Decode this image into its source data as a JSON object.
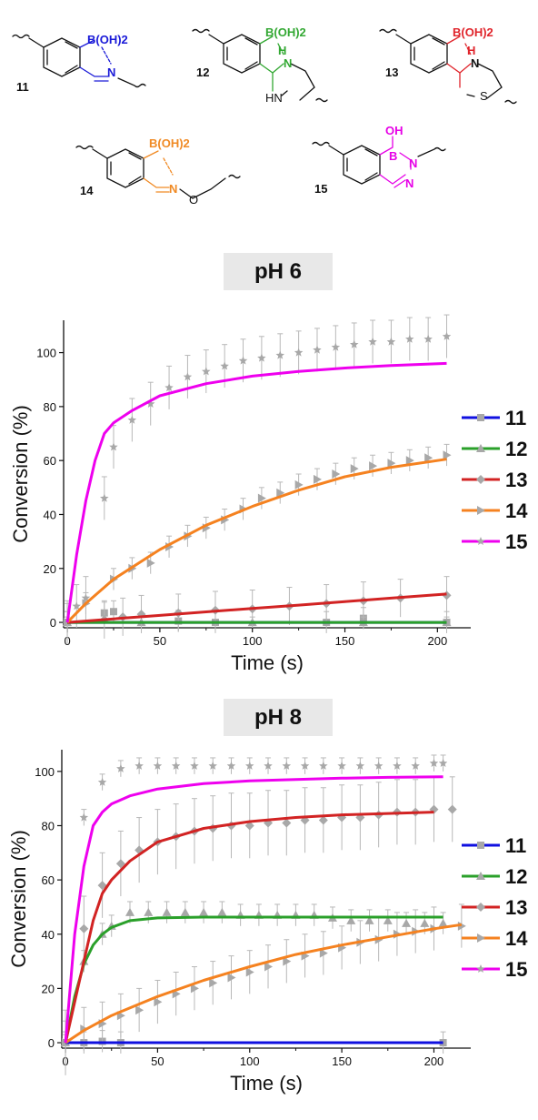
{
  "structures": {
    "compounds": [
      {
        "id": "11",
        "group": "B(OH)2",
        "color": "#1a1ad8",
        "heteroatom": "N"
      },
      {
        "id": "12",
        "group": "B(OH)2",
        "color": "#33a833",
        "heteroatom": "N",
        "extra": [
          "H",
          "N",
          "HN"
        ]
      },
      {
        "id": "13",
        "group": "B(OH)2",
        "color": "#e0242b",
        "heteroatom": "N",
        "extra": [
          "H",
          "N",
          "S"
        ]
      },
      {
        "id": "14",
        "group": "B(OH)2",
        "color": "#f08a24",
        "heteroatom": "N",
        "extra": [
          "O"
        ]
      },
      {
        "id": "15",
        "group": "OH",
        "color": "#e600e6",
        "heteroatom": "B",
        "extra": [
          "N",
          "N"
        ]
      }
    ]
  },
  "chart_data": [
    {
      "type": "line",
      "title": "pH 6",
      "xlabel": "Time (s)",
      "ylabel": "Conversion (%)",
      "xlim": [
        -2,
        218
      ],
      "ylim": [
        -2,
        112
      ],
      "x_ticks": [
        "0",
        "50",
        "100",
        "150",
        "200"
      ],
      "y_ticks": [
        "0",
        "20",
        "40",
        "60",
        "80",
        "100"
      ],
      "legend_position": "right",
      "series": [
        {
          "name": "11",
          "color": "#1010e0",
          "marker": "square",
          "x": [
            0,
            205
          ],
          "y": [
            0,
            0
          ],
          "scatter": [
            [
              0,
              0
            ],
            [
              20,
              3.5
            ],
            [
              25,
              4
            ],
            [
              60,
              0.5
            ],
            [
              80,
              0
            ],
            [
              140,
              0
            ],
            [
              160,
              1.5
            ],
            [
              205,
              0
            ]
          ],
          "err": 4
        },
        {
          "name": "12",
          "color": "#2aa02a",
          "marker": "triangle",
          "x": [
            0,
            205
          ],
          "y": [
            0,
            0
          ],
          "scatter": [
            [
              0,
              0
            ],
            [
              40,
              0
            ],
            [
              100,
              0
            ],
            [
              160,
              0
            ],
            [
              205,
              0
            ]
          ],
          "err": 2
        },
        {
          "name": "13",
          "color": "#d22323",
          "marker": "diamond",
          "x": [
            0,
            25,
            50,
            75,
            100,
            125,
            150,
            175,
            205
          ],
          "y": [
            0,
            1.3,
            2.6,
            3.9,
            5.2,
            6.4,
            7.7,
            9,
            10.5
          ],
          "scatter": [
            [
              0,
              0
            ],
            [
              20,
              1
            ],
            [
              30,
              2
            ],
            [
              40,
              3
            ],
            [
              60,
              3.5
            ],
            [
              80,
              4.5
            ],
            [
              100,
              5
            ],
            [
              120,
              6
            ],
            [
              140,
              7
            ],
            [
              160,
              8
            ],
            [
              180,
              9
            ],
            [
              205,
              10
            ]
          ],
          "err": 7
        },
        {
          "name": "14",
          "color": "#f58220",
          "marker": "triangle-right",
          "x": [
            0,
            10,
            25,
            50,
            75,
            100,
            125,
            150,
            175,
            205
          ],
          "y": [
            0,
            7,
            16,
            27,
            36,
            43,
            49,
            54,
            57.5,
            60.5
          ],
          "scatter": [
            [
              0,
              0
            ],
            [
              10,
              7
            ],
            [
              25,
              16
            ],
            [
              35,
              20
            ],
            [
              45,
              22
            ],
            [
              55,
              28
            ],
            [
              65,
              32
            ],
            [
              75,
              35
            ],
            [
              85,
              38
            ],
            [
              95,
              42
            ],
            [
              105,
              46
            ],
            [
              115,
              48
            ],
            [
              125,
              51
            ],
            [
              135,
              53
            ],
            [
              145,
              55
            ],
            [
              155,
              57
            ],
            [
              165,
              58
            ],
            [
              175,
              59
            ],
            [
              185,
              60
            ],
            [
              195,
              61
            ],
            [
              205,
              62
            ]
          ],
          "err": 4
        },
        {
          "name": "15",
          "color": "#ee00ee",
          "marker": "star",
          "x": [
            0,
            5,
            10,
            15,
            20,
            25,
            35,
            50,
            75,
            100,
            125,
            150,
            175,
            205
          ],
          "y": [
            0,
            25,
            45,
            60,
            70,
            74,
            78.5,
            84,
            88.5,
            91.3,
            93,
            94.3,
            95.2,
            96
          ],
          "scatter": [
            [
              0,
              0
            ],
            [
              5,
              6
            ],
            [
              10,
              9
            ],
            [
              20,
              46
            ],
            [
              25,
              65
            ],
            [
              35,
              75
            ],
            [
              45,
              81
            ],
            [
              55,
              87
            ],
            [
              65,
              91
            ],
            [
              75,
              93
            ],
            [
              85,
              95
            ],
            [
              95,
              97
            ],
            [
              105,
              98
            ],
            [
              115,
              99
            ],
            [
              125,
              100
            ],
            [
              135,
              101
            ],
            [
              145,
              102
            ],
            [
              155,
              103
            ],
            [
              165,
              104
            ],
            [
              175,
              104
            ],
            [
              185,
              105
            ],
            [
              195,
              105
            ],
            [
              205,
              106
            ]
          ],
          "err": 8
        }
      ]
    },
    {
      "type": "line",
      "title": "pH 8",
      "xlabel": "Time (s)",
      "ylabel": "Conversion (%)",
      "xlim": [
        -2,
        220
      ],
      "ylim": [
        -2,
        108
      ],
      "x_ticks": [
        "0",
        "50",
        "100",
        "150",
        "200"
      ],
      "y_ticks": [
        "0",
        "20",
        "40",
        "60",
        "80",
        "100"
      ],
      "legend_position": "right",
      "series": [
        {
          "name": "11",
          "color": "#1010e0",
          "marker": "square",
          "x": [
            0,
            205
          ],
          "y": [
            0,
            0
          ],
          "scatter": [
            [
              0,
              0
            ],
            [
              10,
              0
            ],
            [
              20,
              0.5
            ],
            [
              30,
              0
            ],
            [
              205,
              0
            ]
          ],
          "err": 4
        },
        {
          "name": "12",
          "color": "#2aa02a",
          "marker": "triangle",
          "x": [
            0,
            5,
            10,
            15,
            20,
            25,
            35,
            50,
            75,
            100,
            150,
            205
          ],
          "y": [
            0,
            17,
            29,
            36,
            40,
            42.5,
            45,
            46,
            46.3,
            46.3,
            46.3,
            46.3
          ],
          "scatter": [
            [
              0,
              0
            ],
            [
              10,
              30
            ],
            [
              20,
              40
            ],
            [
              25,
              43
            ],
            [
              35,
              48
            ],
            [
              45,
              48
            ],
            [
              55,
              48
            ],
            [
              65,
              48
            ],
            [
              75,
              48
            ],
            [
              85,
              48
            ],
            [
              95,
              47
            ],
            [
              105,
              47
            ],
            [
              115,
              47
            ],
            [
              125,
              47
            ],
            [
              135,
              47
            ],
            [
              145,
              46
            ],
            [
              155,
              45
            ],
            [
              165,
              45
            ],
            [
              175,
              45
            ],
            [
              185,
              44
            ],
            [
              195,
              44
            ],
            [
              205,
              44
            ]
          ],
          "err": 4
        },
        {
          "name": "13",
          "color": "#d22323",
          "marker": "diamond",
          "x": [
            0,
            5,
            10,
            15,
            20,
            25,
            35,
            50,
            75,
            100,
            125,
            150,
            175,
            200
          ],
          "y": [
            0,
            15,
            30,
            45,
            55,
            60,
            67,
            74,
            79,
            81.5,
            83,
            84,
            84.5,
            85
          ],
          "scatter": [
            [
              0,
              0
            ],
            [
              10,
              42
            ],
            [
              20,
              58
            ],
            [
              30,
              66
            ],
            [
              40,
              71
            ],
            [
              50,
              74
            ],
            [
              60,
              76
            ],
            [
              70,
              78
            ],
            [
              80,
              79
            ],
            [
              90,
              80
            ],
            [
              100,
              80
            ],
            [
              110,
              81
            ],
            [
              120,
              81
            ],
            [
              130,
              82
            ],
            [
              140,
              82
            ],
            [
              150,
              83
            ],
            [
              160,
              83
            ],
            [
              170,
              84
            ],
            [
              180,
              85
            ],
            [
              190,
              85
            ],
            [
              200,
              86
            ],
            [
              210,
              86
            ]
          ],
          "err": 12
        },
        {
          "name": "14",
          "color": "#f58220",
          "marker": "triangle-right",
          "x": [
            0,
            10,
            25,
            50,
            75,
            100,
            125,
            150,
            175,
            200,
            215
          ],
          "y": [
            0,
            4.5,
            10,
            17,
            23,
            28,
            32.5,
            36,
            39,
            42,
            43.5
          ],
          "scatter": [
            [
              0,
              0
            ],
            [
              10,
              5
            ],
            [
              20,
              7
            ],
            [
              30,
              10
            ],
            [
              40,
              12
            ],
            [
              50,
              15
            ],
            [
              60,
              18
            ],
            [
              70,
              20
            ],
            [
              80,
              22
            ],
            [
              90,
              24
            ],
            [
              100,
              26
            ],
            [
              110,
              28
            ],
            [
              120,
              30
            ],
            [
              130,
              32
            ],
            [
              140,
              33
            ],
            [
              150,
              35
            ],
            [
              160,
              37
            ],
            [
              170,
              38
            ],
            [
              180,
              40
            ],
            [
              190,
              41
            ],
            [
              200,
              42
            ],
            [
              215,
              43
            ]
          ],
          "err": 8
        },
        {
          "name": "15",
          "color": "#ee00ee",
          "marker": "star",
          "x": [
            0,
            5,
            10,
            15,
            20,
            25,
            35,
            50,
            75,
            100,
            125,
            150,
            175,
            205
          ],
          "y": [
            0,
            40,
            65,
            80,
            85,
            88,
            91,
            93.5,
            95.5,
            96.5,
            97,
            97.5,
            97.8,
            98
          ],
          "scatter": [
            [
              0,
              0
            ],
            [
              10,
              83
            ],
            [
              20,
              96
            ],
            [
              30,
              101
            ],
            [
              40,
              102
            ],
            [
              50,
              102
            ],
            [
              60,
              102
            ],
            [
              70,
              102
            ],
            [
              80,
              102
            ],
            [
              90,
              102
            ],
            [
              100,
              102
            ],
            [
              110,
              102
            ],
            [
              120,
              102
            ],
            [
              130,
              102
            ],
            [
              140,
              102
            ],
            [
              150,
              102
            ],
            [
              160,
              102
            ],
            [
              170,
              102
            ],
            [
              180,
              102
            ],
            [
              190,
              102
            ],
            [
              200,
              103
            ],
            [
              205,
              103
            ]
          ],
          "err": 3
        }
      ]
    }
  ]
}
